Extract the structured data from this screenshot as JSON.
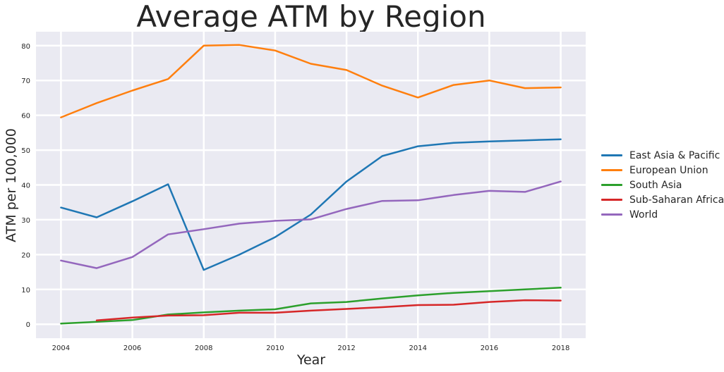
{
  "chart_data": {
    "type": "line",
    "title": "Average ATM by Region",
    "xlabel": "Year",
    "ylabel": "ATM per 100,000",
    "xlim": [
      2003.3,
      2018.7
    ],
    "ylim": [
      -4,
      84
    ],
    "x_ticks": [
      2004,
      2006,
      2008,
      2010,
      2012,
      2014,
      2016,
      2018
    ],
    "y_ticks": [
      0,
      10,
      20,
      30,
      40,
      50,
      60,
      70,
      80
    ],
    "grid": true,
    "legend_position": "right",
    "series": [
      {
        "name": "East Asia & Pacific",
        "color": "#1f77b4",
        "x": [
          2004,
          2005,
          2006,
          2007,
          2008,
          2009,
          2010,
          2011,
          2012,
          2013,
          2014,
          2015,
          2016,
          2017,
          2018
        ],
        "values": [
          33.5,
          30.7,
          35.3,
          40.2,
          15.6,
          20.0,
          25.0,
          31.5,
          41.0,
          48.3,
          51.1,
          52.1,
          52.5,
          52.8,
          53.1
        ]
      },
      {
        "name": "European Union",
        "color": "#ff7f0e",
        "x": [
          2004,
          2005,
          2006,
          2007,
          2008,
          2009,
          2010,
          2011,
          2012,
          2013,
          2014,
          2015,
          2016,
          2017,
          2018
        ],
        "values": [
          59.4,
          63.5,
          67.1,
          70.4,
          80.0,
          80.2,
          78.6,
          74.8,
          73.0,
          68.5,
          65.1,
          68.7,
          70.0,
          67.8,
          68.0
        ]
      },
      {
        "name": "South Asia",
        "color": "#2ca02c",
        "x": [
          2004,
          2005,
          2006,
          2007,
          2008,
          2009,
          2010,
          2011,
          2012,
          2013,
          2014,
          2015,
          2016,
          2017,
          2018
        ],
        "values": [
          0.2,
          0.7,
          1.2,
          2.8,
          3.4,
          3.9,
          4.3,
          6.0,
          6.4,
          7.4,
          8.3,
          9.0,
          9.5,
          10.0,
          10.5
        ]
      },
      {
        "name": "Sub-Saharan Africa",
        "color": "#d62728",
        "x": [
          2005,
          2006,
          2007,
          2008,
          2009,
          2010,
          2011,
          2012,
          2013,
          2014,
          2015,
          2016,
          2017,
          2018
        ],
        "values": [
          1.1,
          1.9,
          2.5,
          2.6,
          3.3,
          3.3,
          3.9,
          4.4,
          4.9,
          5.5,
          5.6,
          6.4,
          6.9,
          6.8
        ]
      },
      {
        "name": "World",
        "color": "#9467bd",
        "x": [
          2004,
          2005,
          2006,
          2007,
          2008,
          2009,
          2010,
          2011,
          2012,
          2013,
          2014,
          2015,
          2016,
          2017,
          2018
        ],
        "values": [
          18.3,
          16.1,
          19.3,
          25.8,
          27.3,
          28.9,
          29.7,
          30.1,
          33.1,
          35.4,
          35.6,
          37.1,
          38.3,
          38.0,
          41.0
        ]
      }
    ]
  }
}
